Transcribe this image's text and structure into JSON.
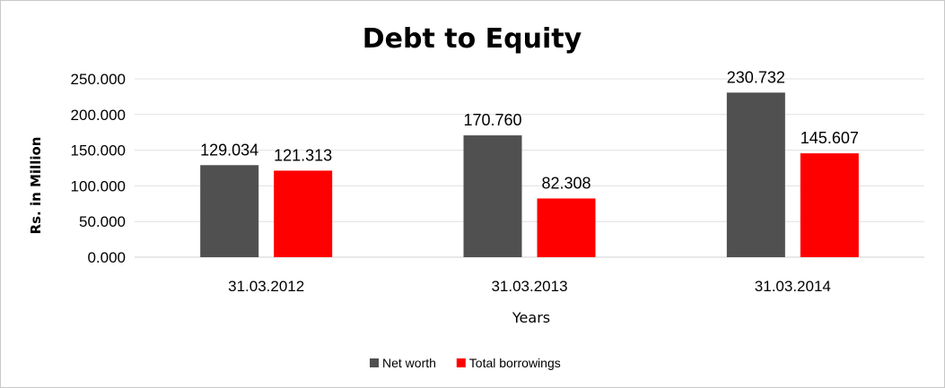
{
  "chart_data": {
    "type": "bar",
    "title": "Debt to Equity",
    "xlabel": "Years",
    "ylabel": "Rs. in Million",
    "categories": [
      "31.03.2012",
      "31.03.2013",
      "31.03.2014"
    ],
    "series": [
      {
        "name": "Net worth",
        "values": [
          129.034,
          170.76,
          230.732
        ],
        "labels": [
          "129.034",
          "170.760",
          "230.732"
        ],
        "color": "#505050"
      },
      {
        "name": "Total borrowings",
        "values": [
          121.313,
          82.308,
          145.607
        ],
        "labels": [
          "121.313",
          "82.308",
          "145.607"
        ],
        "color": "#ff0000"
      }
    ],
    "ylim": [
      0,
      250
    ],
    "yticks": [
      "0.000",
      "50.000",
      "100.000",
      "150.000",
      "200.000",
      "250.000"
    ],
    "grid": true,
    "legend": "bottom-center"
  }
}
